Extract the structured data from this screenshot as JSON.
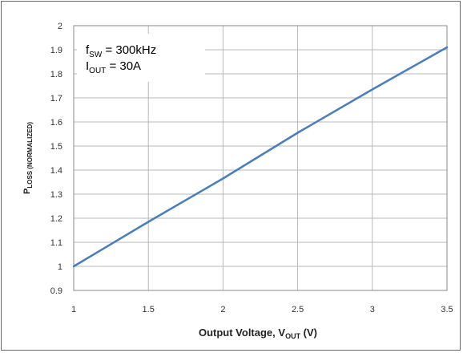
{
  "chart_data": {
    "type": "line",
    "x": [
      1,
      1.5,
      2,
      2.5,
      3,
      3.5
    ],
    "series": [
      {
        "values": [
          1.0,
          1.185,
          1.365,
          1.555,
          1.735,
          1.91
        ]
      }
    ],
    "xlim": [
      1,
      3.5
    ],
    "ylim": [
      0.9,
      2.0
    ],
    "x_ticks": [
      "1",
      "1.5",
      "2",
      "2.5",
      "3",
      "3.5"
    ],
    "y_ticks": [
      "0.9",
      "1",
      "1.1",
      "1.2",
      "1.3",
      "1.4",
      "1.5",
      "1.6",
      "1.7",
      "1.8",
      "1.9",
      "2"
    ],
    "xlabel": {
      "main": "Output Voltage, V",
      "sub": "OUT",
      "unit": " (V)"
    },
    "ylabel": {
      "main": "P",
      "sub": "LOSS (NORMALIZED)"
    },
    "annotation": [
      {
        "main": "f",
        "sub": "SW",
        "rest": " = 300kHz"
      },
      {
        "main": "I",
        "sub": "OUT",
        "rest": " = 30A"
      }
    ],
    "grid": true,
    "colors": {
      "line": "#4a7ebb",
      "grid": "#b8b8b8",
      "axis": "#888888"
    }
  }
}
